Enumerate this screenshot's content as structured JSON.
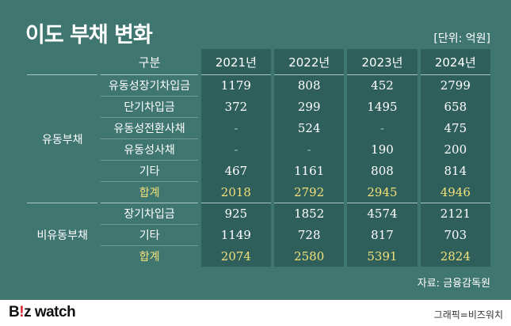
{
  "title": "이도 부채 변화",
  "unit": "[단위: 억원]",
  "header": {
    "label": "구분",
    "years": [
      "2021년",
      "2022년",
      "2023년",
      "2024년"
    ]
  },
  "groups": [
    {
      "name": "유동부채",
      "rows": [
        {
          "label": "유동성장기차입금",
          "values": [
            "1179",
            "808",
            "452",
            "2799"
          ]
        },
        {
          "label": "단기차입금",
          "values": [
            "372",
            "299",
            "1495",
            "658"
          ]
        },
        {
          "label": "유동성전환사채",
          "values": [
            "-",
            "524",
            "-",
            "475"
          ]
        },
        {
          "label": "유동성사채",
          "values": [
            "-",
            "-",
            "190",
            "200"
          ]
        },
        {
          "label": "기타",
          "values": [
            "467",
            "1161",
            "808",
            "814"
          ]
        },
        {
          "label": "합계",
          "values": [
            "2018",
            "2792",
            "2945",
            "4946"
          ],
          "total": true
        }
      ]
    },
    {
      "name": "비유동부채",
      "rows": [
        {
          "label": "장기차입금",
          "values": [
            "925",
            "1852",
            "4574",
            "2121"
          ]
        },
        {
          "label": "기타",
          "values": [
            "1149",
            "728",
            "817",
            "703"
          ]
        },
        {
          "label": "합계",
          "values": [
            "2074",
            "2580",
            "5391",
            "2824"
          ],
          "total": true
        }
      ]
    }
  ],
  "source": "자료: 금융감독원",
  "footer": {
    "logo_b": "B",
    "logo_bang": "!",
    "logo_rest": "z watch",
    "credit": "그래픽=비즈워치"
  },
  "colors": {
    "background": "#3f7670",
    "cell": "#2f5f5a",
    "total_text": "#f2e07a"
  }
}
